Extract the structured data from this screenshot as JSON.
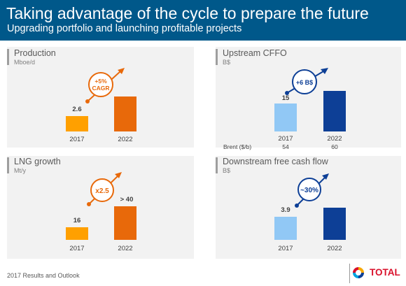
{
  "header": {
    "title": "Taking advantage of the cycle to prepare the future",
    "subtitle": "Upgrading portfolio and launching profitable projects"
  },
  "footer": {
    "text": "2017 Results and Outlook",
    "logo_text": "TOTAL"
  },
  "colors": {
    "orange_light": "#ffa000",
    "orange_dark": "#e8690a",
    "blue_light": "#91c8f5",
    "blue_dark": "#0d3f96",
    "header": "#00588a"
  },
  "panels": {
    "production": {
      "title": "Production",
      "unit": "Mboe/d",
      "badge": "+5% CAGR",
      "badge_line1": "+5%",
      "badge_line2": "CAGR"
    },
    "cffo": {
      "title": "Upstream CFFO",
      "unit": "B$",
      "badge": "+6 B$",
      "brent_label": "Brent ($/b)",
      "brent_values": [
        "54",
        "60"
      ]
    },
    "lng": {
      "title": "LNG growth",
      "unit": "Mt/y",
      "badge": "x2.5"
    },
    "dfcf": {
      "title": "Downstream free cash flow",
      "unit": "B$",
      "badge": "~30%"
    }
  },
  "chart_data": [
    {
      "type": "bar",
      "title": "Production",
      "categories": [
        "2017",
        "2022"
      ],
      "values": [
        2.6,
        null
      ],
      "data_labels": [
        "2.6",
        ""
      ],
      "annotation": "+5% CAGR",
      "ylabel": "Mboe/d",
      "colors": [
        "#ffa000",
        "#e8690a"
      ]
    },
    {
      "type": "bar",
      "title": "Upstream CFFO",
      "categories": [
        "2017",
        "2022"
      ],
      "values": [
        15,
        21
      ],
      "data_labels": [
        "15",
        ""
      ],
      "annotation": "+6 B$",
      "ylabel": "B$",
      "colors": [
        "#91c8f5",
        "#0d3f96"
      ]
    },
    {
      "type": "bar",
      "title": "LNG growth",
      "categories": [
        "2017",
        "2022"
      ],
      "values": [
        16,
        40
      ],
      "data_labels": [
        "16",
        "> 40"
      ],
      "annotation": "x2.5",
      "ylabel": "Mt/y",
      "colors": [
        "#ffa000",
        "#e8690a"
      ]
    },
    {
      "type": "bar",
      "title": "Downstream free cash flow",
      "categories": [
        "2017",
        "2022"
      ],
      "values": [
        3.9,
        null
      ],
      "data_labels": [
        "3.9",
        ""
      ],
      "annotation": "~30%",
      "ylabel": "B$",
      "colors": [
        "#91c8f5",
        "#0d3f96"
      ]
    }
  ]
}
